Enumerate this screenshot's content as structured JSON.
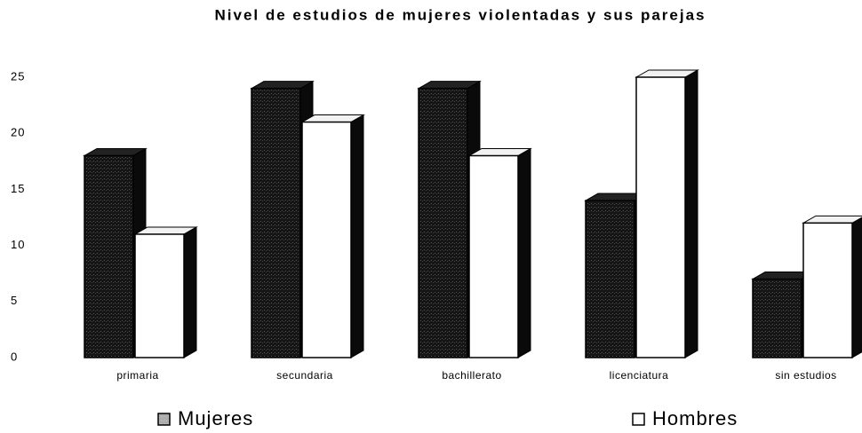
{
  "chart_data": {
    "type": "bar3d",
    "title": "Nivel de estudios de mujeres violentadas y sus parejas",
    "categories": [
      "primaria",
      "secundaria",
      "bachillerato",
      "licenciatura",
      "sin estudios"
    ],
    "series": [
      {
        "name": "Mujeres",
        "color": "#111111",
        "values": [
          18,
          24,
          24,
          14,
          7
        ]
      },
      {
        "name": "Hombres",
        "color": "#ffffff",
        "values": [
          11,
          21,
          18,
          25,
          12
        ]
      }
    ],
    "ylim": [
      0,
      25
    ],
    "yticks": [
      0,
      5,
      10,
      15,
      20,
      25
    ],
    "grid": false,
    "legend": "bottom"
  }
}
